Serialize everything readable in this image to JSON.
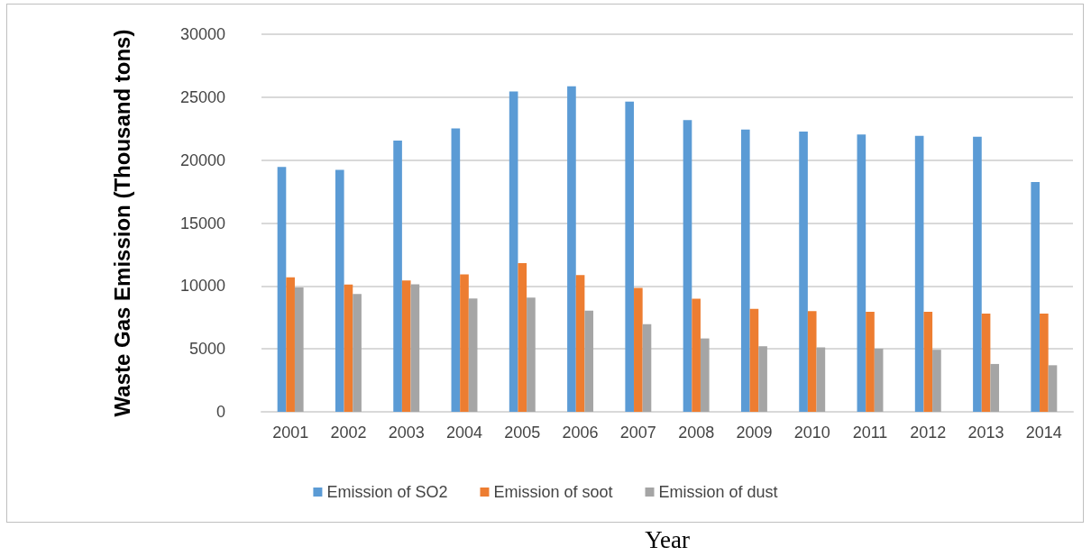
{
  "chart_data": {
    "type": "bar",
    "xlabel": "Year",
    "ylabel": "Waste Gas Emission (Thousand tons)",
    "categories": [
      "2001",
      "2002",
      "2003",
      "2004",
      "2005",
      "2006",
      "2007",
      "2008",
      "2009",
      "2010",
      "2011",
      "2012",
      "2013",
      "2014"
    ],
    "series": [
      {
        "name": "Emission of SO2",
        "color": "#5b9bd5",
        "values": [
          19450,
          19220,
          21560,
          22520,
          25450,
          25870,
          24650,
          23180,
          22430,
          22260,
          22030,
          21930,
          21860,
          18260
        ]
      },
      {
        "name": "Emission of soot",
        "color": "#ed7d31",
        "values": [
          10680,
          10120,
          10430,
          10920,
          11820,
          10870,
          9840,
          8990,
          8180,
          8000,
          7950,
          7950,
          7810,
          7810
        ]
      },
      {
        "name": "Emission of dust",
        "color": "#a5a5a5",
        "values": [
          9880,
          9360,
          10140,
          9010,
          9080,
          8040,
          6960,
          5830,
          5210,
          5120,
          5020,
          4930,
          3800,
          3700
        ]
      }
    ],
    "ylim": [
      0,
      30000
    ],
    "yticks": [
      0,
      5000,
      10000,
      15000,
      20000,
      25000,
      30000
    ],
    "grid": "y",
    "legend": "bottom"
  }
}
